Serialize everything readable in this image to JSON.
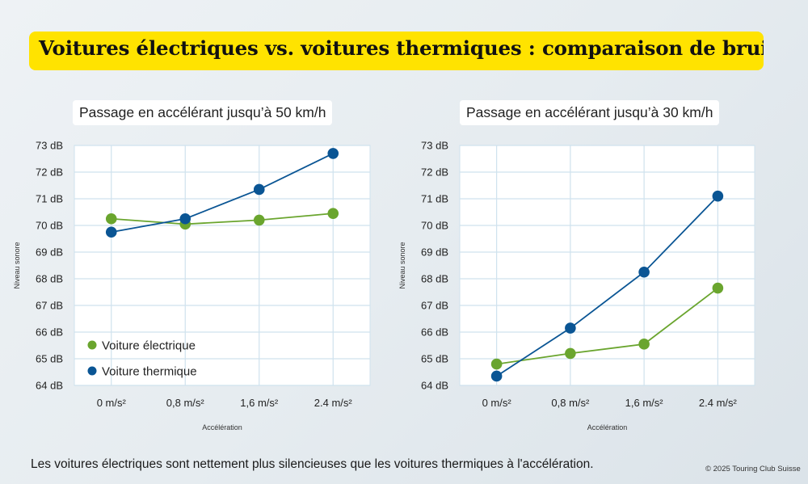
{
  "title": "Voitures électriques vs. voitures thermiques : comparaison de bruit",
  "footer": "Les voitures électriques sont nettement plus silencieuses que les voitures thermiques à l'accélération.",
  "copyright": "© 2025 Touring Club Suisse",
  "colors": {
    "title_background": "#ffe300",
    "electric": "#6aa52e",
    "thermal": "#0a5594",
    "plot_background": "#ffffff",
    "grid": "#cfe2ee"
  },
  "chart_data": [
    {
      "type": "line",
      "title": "Passage en accélérant jusqu’à 50 km/h",
      "xlabel": "Accélération",
      "ylabel": "Niveau sonore",
      "categories": [
        "0 m/s²",
        "0,8 m/s²",
        "1,6 m/s²",
        "2.4 m/s²"
      ],
      "yticks": [
        "64 dB",
        "65 dB",
        "66 dB",
        "67 dB",
        "68 dB",
        "69 dB",
        "70 dB",
        "71 dB",
        "72 dB",
        "73 dB"
      ],
      "ylim": [
        64,
        73
      ],
      "grid": true,
      "legend_position": "bottom-left",
      "series": [
        {
          "name": "Voiture électrique",
          "color": "#6aa52e",
          "values": [
            70.25,
            70.05,
            70.2,
            70.45
          ]
        },
        {
          "name": "Voiture thermique",
          "color": "#0a5594",
          "values": [
            69.75,
            70.25,
            71.35,
            72.7
          ]
        }
      ]
    },
    {
      "type": "line",
      "title": "Passage en accélérant jusqu’à 30 km/h",
      "xlabel": "Accélération",
      "ylabel": "Niveau sonore",
      "categories": [
        "0 m/s²",
        "0,8 m/s²",
        "1,6 m/s²",
        "2.4 m/s²"
      ],
      "yticks": [
        "64 dB",
        "65 dB",
        "66 dB",
        "67 dB",
        "68 dB",
        "69 dB",
        "70 dB",
        "71 dB",
        "72 dB",
        "73 dB"
      ],
      "ylim": [
        64,
        73
      ],
      "grid": true,
      "legend_position": "none",
      "series": [
        {
          "name": "Voiture électrique",
          "color": "#6aa52e",
          "values": [
            64.8,
            65.2,
            65.55,
            67.65
          ]
        },
        {
          "name": "Voiture thermique",
          "color": "#0a5594",
          "values": [
            64.35,
            66.15,
            68.25,
            71.1
          ]
        }
      ]
    }
  ]
}
